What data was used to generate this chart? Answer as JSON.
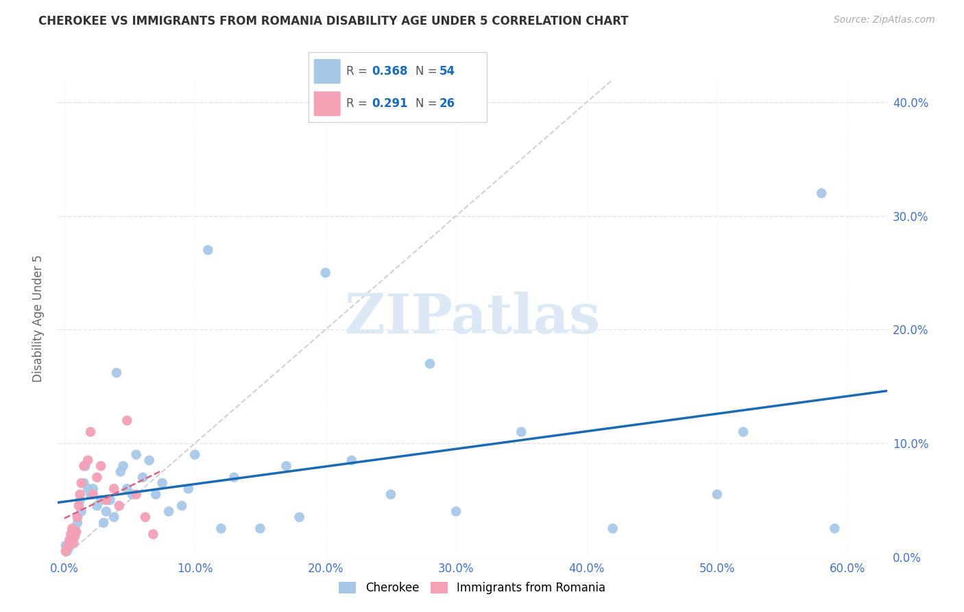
{
  "title": "CHEROKEE VS IMMIGRANTS FROM ROMANIA DISABILITY AGE UNDER 5 CORRELATION CHART",
  "source": "Source: ZipAtlas.com",
  "ylabel": "Disability Age Under 5",
  "ylim": [
    0.0,
    0.42
  ],
  "xlim": [
    -0.005,
    0.63
  ],
  "yticks": [
    0.0,
    0.1,
    0.2,
    0.3,
    0.4
  ],
  "xticks": [
    0.0,
    0.1,
    0.2,
    0.3,
    0.4,
    0.5,
    0.6
  ],
  "cherokee_color": "#a8c8e8",
  "romania_color": "#f4a0b5",
  "trend_blue": "#1a6bb5",
  "trend_red": "#e06080",
  "diagonal_color": "#cccccc",
  "grid_color": "#dde5f0",
  "watermark": "ZIPatlas",
  "watermark_color": "#dce8f5",
  "legend_R1": "0.368",
  "legend_N1": "54",
  "legend_R2": "0.291",
  "legend_N2": "26",
  "cherokee_x": [
    0.001,
    0.002,
    0.003,
    0.004,
    0.005,
    0.006,
    0.007,
    0.008,
    0.009,
    0.01,
    0.012,
    0.013,
    0.015,
    0.016,
    0.018,
    0.02,
    0.022,
    0.025,
    0.028,
    0.03,
    0.032,
    0.035,
    0.038,
    0.04,
    0.043,
    0.045,
    0.048,
    0.052,
    0.055,
    0.06,
    0.065,
    0.07,
    0.075,
    0.08,
    0.09,
    0.095,
    0.1,
    0.11,
    0.12,
    0.13,
    0.15,
    0.17,
    0.18,
    0.2,
    0.22,
    0.25,
    0.28,
    0.3,
    0.35,
    0.42,
    0.5,
    0.52,
    0.58,
    0.59
  ],
  "cherokee_y": [
    0.01,
    0.005,
    0.008,
    0.012,
    0.015,
    0.02,
    0.018,
    0.025,
    0.022,
    0.03,
    0.05,
    0.04,
    0.065,
    0.08,
    0.06,
    0.055,
    0.06,
    0.045,
    0.05,
    0.03,
    0.04,
    0.05,
    0.035,
    0.162,
    0.075,
    0.08,
    0.06,
    0.055,
    0.09,
    0.07,
    0.085,
    0.055,
    0.065,
    0.04,
    0.045,
    0.06,
    0.09,
    0.27,
    0.025,
    0.07,
    0.025,
    0.08,
    0.035,
    0.25,
    0.085,
    0.055,
    0.17,
    0.04,
    0.11,
    0.025,
    0.055,
    0.11,
    0.32,
    0.025
  ],
  "romania_x": [
    0.001,
    0.002,
    0.003,
    0.004,
    0.005,
    0.006,
    0.007,
    0.008,
    0.009,
    0.01,
    0.011,
    0.012,
    0.013,
    0.015,
    0.018,
    0.02,
    0.022,
    0.025,
    0.028,
    0.032,
    0.038,
    0.042,
    0.048,
    0.055,
    0.062,
    0.068
  ],
  "romania_y": [
    0.005,
    0.008,
    0.01,
    0.015,
    0.02,
    0.025,
    0.012,
    0.018,
    0.022,
    0.035,
    0.045,
    0.055,
    0.065,
    0.08,
    0.085,
    0.11,
    0.055,
    0.07,
    0.08,
    0.05,
    0.06,
    0.045,
    0.12,
    0.055,
    0.035,
    0.02
  ]
}
